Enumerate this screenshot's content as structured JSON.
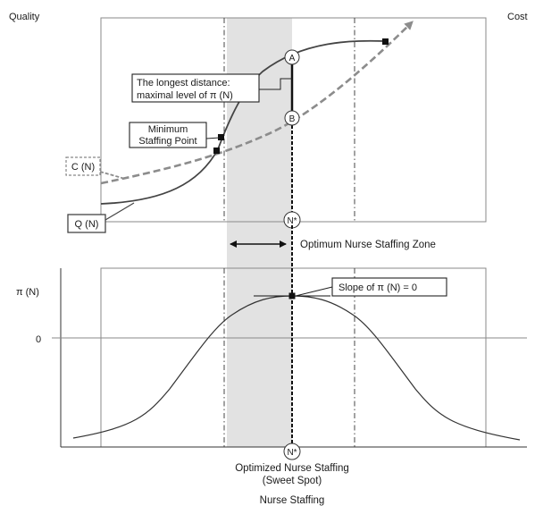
{
  "top": {
    "left_axis_label": "Quality",
    "right_axis_label": "Cost",
    "point_a": "A",
    "point_b": "B",
    "n_star": "N*",
    "longest_distance_line1": "The longest distance:",
    "longest_distance_line2": "maximal level of π (N)",
    "min_staffing_line1": "Minimum",
    "min_staffing_line2": "Staffing Point",
    "cost_curve_label": "C (N)",
    "quality_curve_label": "Q (N)",
    "zone_label": "Optimum Nurse Staffing Zone"
  },
  "bottom": {
    "y_axis_label": "π (N)",
    "zero_label": "0",
    "slope_label": "Slope of π (N) = 0",
    "n_star": "N*",
    "caption_line1": "Optimized Nurse Staffing",
    "caption_line2": "(Sweet Spot)",
    "x_axis_label": "Nurse Staffing"
  },
  "colors": {
    "zone_fill": "#e2e2e2",
    "quality_curve": "#444444",
    "cost_curve": "#8c8c8c",
    "frame": "#8a8a8a"
  }
}
